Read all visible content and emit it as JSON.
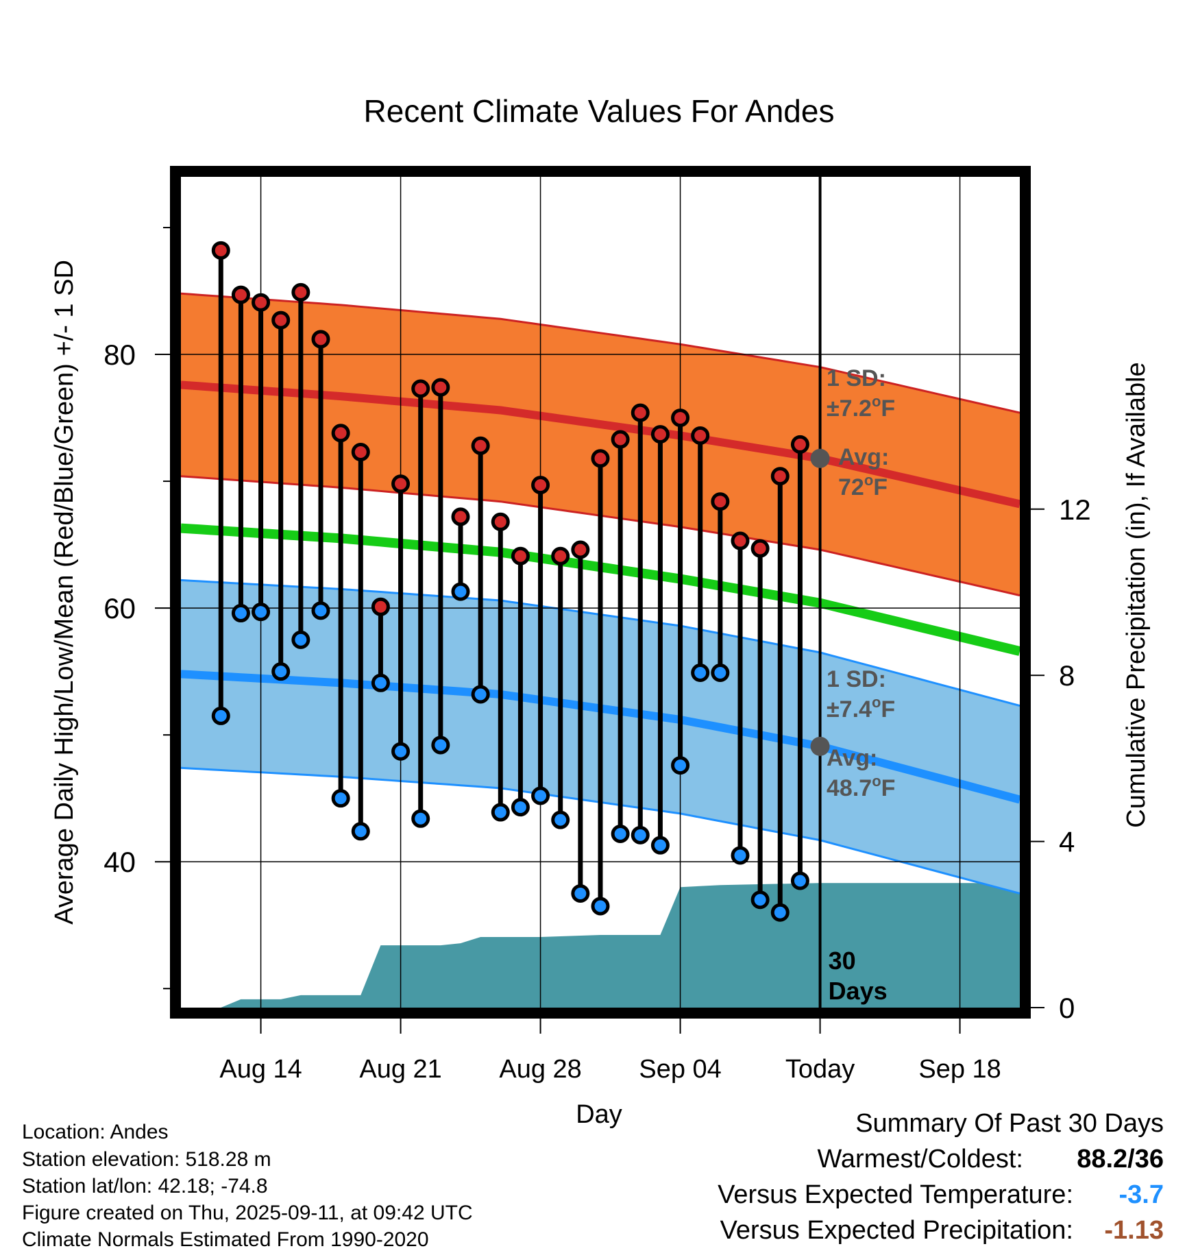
{
  "chart_data": {
    "type": "line",
    "title": "Recent Climate Values For Andes",
    "xlabel": "Day",
    "ylabel": "Average Daily High/Low/Mean (Red/Blue/Green) +/- 1 SD",
    "y2label": "Cumulative Precipitation (in), If Available",
    "ylim": [
      28.5,
      94
    ],
    "y2lim": [
      0,
      20
    ],
    "yticks": [
      40,
      60,
      80
    ],
    "y2ticks": [
      0,
      4,
      8,
      12
    ],
    "xlim": [
      "2025-08-10",
      "2025-09-21"
    ],
    "xticks": [
      {
        "date": "2025-08-14",
        "label": "Aug 14"
      },
      {
        "date": "2025-08-21",
        "label": "Aug 21"
      },
      {
        "date": "2025-08-28",
        "label": "Aug 28"
      },
      {
        "date": "2025-09-04",
        "label": "Sep 04"
      },
      {
        "date": "2025-09-11",
        "label": "Today"
      },
      {
        "date": "2025-09-18",
        "label": "Sep 18"
      }
    ],
    "today": "2025-09-11",
    "today_label_line1": "30",
    "today_label_line2": "Days",
    "grid": true,
    "daily": [
      {
        "date": "2025-08-12",
        "high": 88.2,
        "low": 51.5
      },
      {
        "date": "2025-08-13",
        "high": 84.7,
        "low": 59.6
      },
      {
        "date": "2025-08-14",
        "high": 84.1,
        "low": 59.7
      },
      {
        "date": "2025-08-15",
        "high": 82.7,
        "low": 55.0
      },
      {
        "date": "2025-08-16",
        "high": 84.9,
        "low": 57.5
      },
      {
        "date": "2025-08-17",
        "high": 81.2,
        "low": 59.8
      },
      {
        "date": "2025-08-18",
        "high": 73.8,
        "low": 45.0
      },
      {
        "date": "2025-08-19",
        "high": 72.3,
        "low": 42.4
      },
      {
        "date": "2025-08-20",
        "high": 60.1,
        "low": 54.1
      },
      {
        "date": "2025-08-21",
        "high": 69.8,
        "low": 48.7
      },
      {
        "date": "2025-08-22",
        "high": 77.3,
        "low": 43.4
      },
      {
        "date": "2025-08-23",
        "high": 77.4,
        "low": 49.2
      },
      {
        "date": "2025-08-24",
        "high": 67.2,
        "low": 61.3
      },
      {
        "date": "2025-08-25",
        "high": 72.8,
        "low": 53.2
      },
      {
        "date": "2025-08-26",
        "high": 66.8,
        "low": 43.9
      },
      {
        "date": "2025-08-27",
        "high": 64.1,
        "low": 44.3
      },
      {
        "date": "2025-08-28",
        "high": 69.7,
        "low": 45.2
      },
      {
        "date": "2025-08-29",
        "high": 64.1,
        "low": 43.3
      },
      {
        "date": "2025-08-30",
        "high": 64.6,
        "low": 37.5
      },
      {
        "date": "2025-08-31",
        "high": 71.8,
        "low": 36.5
      },
      {
        "date": "2025-09-01",
        "high": 73.3,
        "low": 42.2
      },
      {
        "date": "2025-09-02",
        "high": 75.4,
        "low": 42.1
      },
      {
        "date": "2025-09-03",
        "high": 73.7,
        "low": 41.3
      },
      {
        "date": "2025-09-04",
        "high": 75.0,
        "low": 47.6
      },
      {
        "date": "2025-09-05",
        "high": 73.6,
        "low": 54.9
      },
      {
        "date": "2025-09-06",
        "high": 68.4,
        "low": 54.9
      },
      {
        "date": "2025-09-07",
        "high": 65.3,
        "low": 40.5
      },
      {
        "date": "2025-09-08",
        "high": 64.7,
        "low": 37.0
      },
      {
        "date": "2025-09-09",
        "high": 70.4,
        "low": 36.0
      },
      {
        "date": "2025-09-10",
        "high": 72.9,
        "low": 38.5
      }
    ],
    "normals": {
      "dates": [
        "2025-08-10",
        "2025-08-18",
        "2025-08-26",
        "2025-09-04",
        "2025-09-11",
        "2025-09-21"
      ],
      "high_avg": [
        77.6,
        76.7,
        75.6,
        73.6,
        71.8,
        68.2
      ],
      "high_sd": 7.2,
      "mean_avg": [
        66.3,
        65.5,
        64.4,
        62.3,
        60.4,
        56.6
      ],
      "low_avg": [
        54.8,
        54.1,
        53.2,
        51.2,
        49.1,
        44.9
      ],
      "low_sd": 7.4
    },
    "precipitation": {
      "dates": [
        "2025-08-11",
        "2025-08-12",
        "2025-08-13",
        "2025-08-15",
        "2025-08-16",
        "2025-08-19",
        "2025-08-20",
        "2025-08-23",
        "2025-08-24",
        "2025-08-25",
        "2025-08-28",
        "2025-08-31",
        "2025-09-03",
        "2025-09-04",
        "2025-09-06",
        "2025-09-11",
        "2025-09-21"
      ],
      "values": [
        0.0,
        0.0,
        0.2,
        0.2,
        0.3,
        0.3,
        1.5,
        1.5,
        1.55,
        1.7,
        1.7,
        1.75,
        1.75,
        2.9,
        2.95,
        3.0,
        3.0
      ]
    },
    "annotations": {
      "high_sd_label": "1 SD:",
      "high_sd_value": "±7.2",
      "high_avg_label": "Avg:",
      "high_avg_value": "72",
      "low_sd_label": "1 SD:",
      "low_sd_value": "±7.4",
      "low_avg_label": "Avg:",
      "low_avg_value": "48.7",
      "degree_symbol": "o",
      "unit": "F"
    },
    "colors": {
      "high_band": "#f47b30",
      "high_line": "#d42a2a",
      "high_band_edge": "#cc2222",
      "mean_line": "#16cc16",
      "low_band": "#86c2e8",
      "low_line": "#1e90ff",
      "precip": "#4899a4",
      "high_dot": "#d42a2a",
      "low_dot": "#1e90ff",
      "annotation": "#555555",
      "vs_temp": "#1e90ff",
      "vs_precip": "#a0522d"
    }
  },
  "info": {
    "location": "Location: Andes",
    "elevation": "Station elevation: 518.28 m",
    "latlon": "Station lat/lon: 42.18; -74.8",
    "created": "Figure created on Thu, 2025-09-11, at 09:42 UTC",
    "normals": "Climate Normals Estimated From 1990-2020"
  },
  "summary": {
    "title": "Summary Of Past 30 Days",
    "warmest_label": "Warmest/Coldest:",
    "warmest_value": "88.2/36",
    "vs_temp_label": "Versus Expected Temperature:",
    "vs_temp_value": "-3.7",
    "vs_precip_label": "Versus Expected Precipitation:",
    "vs_precip_value": "-1.13"
  }
}
